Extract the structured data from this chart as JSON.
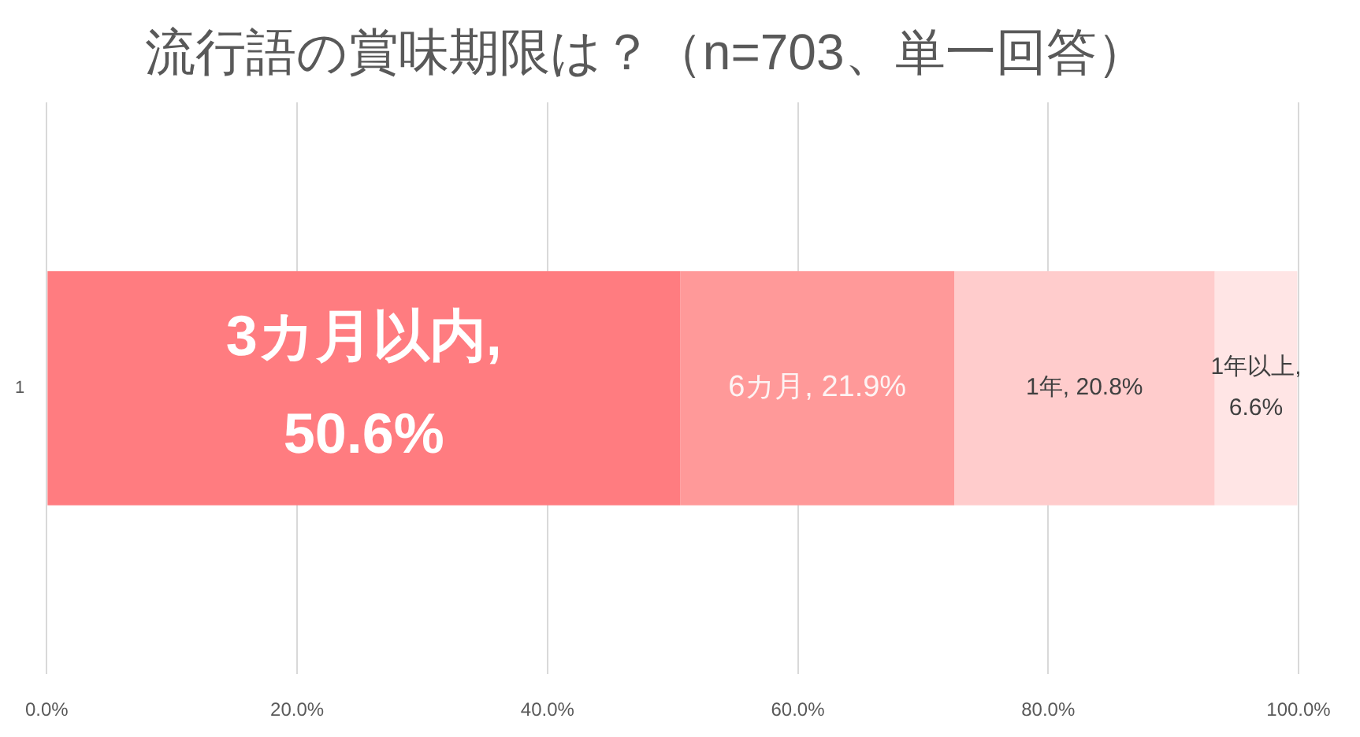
{
  "chart_data": {
    "type": "bar",
    "title": "流行語の賞味期限は？（n=703、単一回答）",
    "orientation": "horizontal",
    "stacked": true,
    "categories": [
      "1"
    ],
    "series": [
      {
        "color": "#ff7c80",
        "values": [
          50.6
        ],
        "value_labels": [
          "3カ月以内, 50.6%"
        ]
      },
      {
        "color": "#ff9999",
        "values": [
          21.9
        ],
        "value_labels": [
          "6カ月, 21.9%"
        ]
      },
      {
        "color": "#ffcccc",
        "values": [
          20.8
        ],
        "value_labels": [
          "1年, 20.8%"
        ]
      },
      {
        "color": "#ffe5e5",
        "values": [
          6.6
        ],
        "value_labels": [
          "1年以上, 6.6%"
        ]
      }
    ],
    "xlim": [
      0,
      100
    ],
    "xticks": [
      {
        "value": 0,
        "label": "0.0%"
      },
      {
        "value": 20,
        "label": "20.0%"
      },
      {
        "value": 40,
        "label": "40.0%"
      },
      {
        "value": 60,
        "label": "60.0%"
      },
      {
        "value": 80,
        "label": "80.0%"
      },
      {
        "value": 100,
        "label": "100.0%"
      }
    ],
    "grid": "x"
  }
}
